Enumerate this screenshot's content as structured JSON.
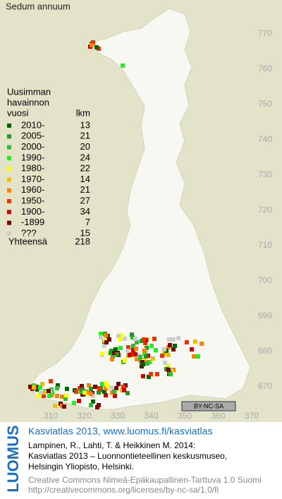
{
  "map": {
    "title": "Sedum annuum",
    "legend": {
      "header": [
        "Uusimman",
        "havainnon",
        "vuosi"
      ],
      "count_header": "lkm",
      "rows": [
        {
          "label": "2010-",
          "count": 13,
          "color": "#006400"
        },
        {
          "label": "2005-",
          "count": 21,
          "color": "#229922"
        },
        {
          "label": "2000-",
          "count": 20,
          "color": "#33bb33"
        },
        {
          "label": "1990-",
          "count": 24,
          "color": "#22ee22"
        },
        {
          "label": "1980-",
          "count": 22,
          "color": "#ffff00"
        },
        {
          "label": "1970-",
          "count": 14,
          "color": "#f0c000"
        },
        {
          "label": "1960-",
          "count": 21,
          "color": "#ff8000"
        },
        {
          "label": "1950-",
          "count": 27,
          "color": "#ee3300"
        },
        {
          "label": "1900-",
          "count": 34,
          "color": "#cc0000"
        },
        {
          "label": "-1899",
          "count": 7,
          "color": "#800000"
        },
        {
          "label": "???",
          "count": 15,
          "color": "#cccccc"
        }
      ],
      "total_label": "Yhteensä",
      "total": 218
    },
    "y_ticks": [
      770,
      760,
      750,
      740,
      730,
      720,
      710,
      700,
      690,
      680,
      670
    ],
    "x_ticks": [
      310,
      320,
      330,
      340,
      350,
      360,
      370
    ],
    "license_badge": "BY-NC-SA"
  },
  "footer": {
    "logo": "LUOMUS",
    "heading": "Kasviatlas 2013, www.luomus.fi/kasviatlas",
    "citation": [
      "Lampinen, R., Lahti, T. & Heikkinen M. 2014:",
      "Kasviatlas 2013 – Luonnontieteellinen keskusmuseo,",
      "Helsingin Yliopisto, Helsinki."
    ],
    "license": [
      "Creative Commons Nimeä-Epäkaupallinen-Tarttuva 1.0 Suomi",
      "http://creativecommons.org/licenses/by-nc-sa/1.0/fi"
    ]
  }
}
